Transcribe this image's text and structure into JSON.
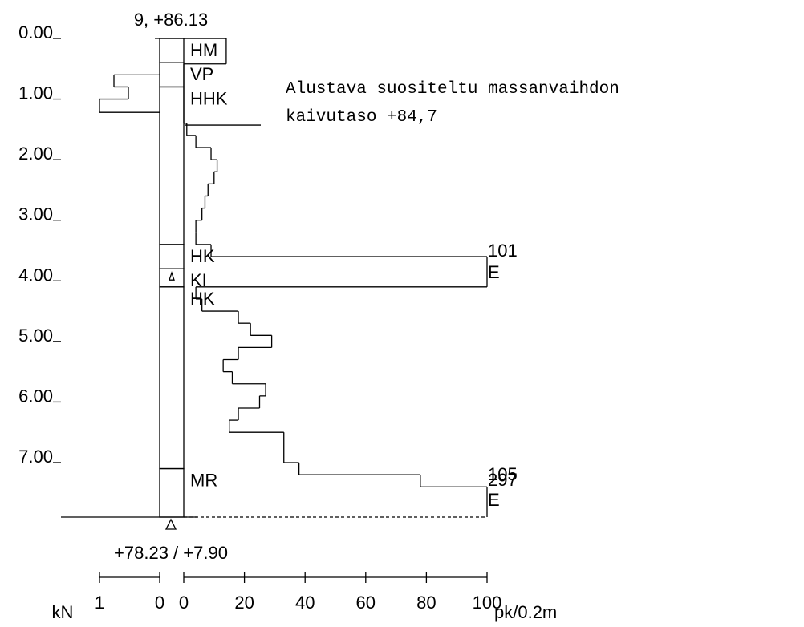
{
  "title": "9, +86.13",
  "bottom_label": "+78.23 / +7.90",
  "depth_lim": [
    0,
    7.9
  ],
  "depth_ticks": [
    {
      "value": 0,
      "label": "0.00"
    },
    {
      "value": 1,
      "label": "1.00"
    },
    {
      "value": 2,
      "label": "2.00"
    },
    {
      "value": 3,
      "label": "3.00"
    },
    {
      "value": 4,
      "label": "4.00"
    },
    {
      "value": 5,
      "label": "5.00"
    },
    {
      "value": 6,
      "label": "6.00"
    },
    {
      "value": 7,
      "label": "7.00"
    }
  ],
  "pk_axis": {
    "label": "pk/0.2m",
    "lim": [
      0,
      100
    ],
    "ticks": [
      0,
      20,
      40,
      60,
      80,
      100
    ]
  },
  "kn_axis": {
    "label": "kN",
    "lim": [
      0,
      1
    ],
    "ticks": [
      1,
      0
    ]
  },
  "layers": [
    {
      "name": "HM",
      "top": 0,
      "bottom": 0.4,
      "symbol": "none"
    },
    {
      "name": "VP",
      "top": 0.4,
      "bottom": 0.8,
      "symbol": "circles"
    },
    {
      "name": "HHK",
      "top": 0.8,
      "bottom": 3.4,
      "symbol": "dots"
    },
    {
      "name": "HK",
      "top": 3.4,
      "bottom": 3.8,
      "symbol": "dots"
    },
    {
      "name": "KI",
      "top": 3.8,
      "bottom": 4.1,
      "symbol": "stone"
    },
    {
      "name": "HK",
      "top": 4.1,
      "bottom": 7.1,
      "symbol": "dots"
    },
    {
      "name": "MR",
      "top": 7.1,
      "bottom": 7.9,
      "symbol": "zigzag"
    }
  ],
  "pk_profile": {
    "edges": [
      0,
      0.42,
      1.4,
      1.6,
      1.8,
      2.0,
      2.2,
      2.4,
      2.6,
      2.8,
      3.0,
      3.2,
      3.4,
      3.6,
      4.1,
      4.3,
      4.5,
      4.7,
      4.9,
      5.1,
      5.3,
      5.5,
      5.7,
      5.9,
      6.1,
      6.3,
      6.5,
      7.0,
      7.2,
      7.4,
      7.9
    ],
    "values": [
      14,
      0,
      1,
      4,
      9,
      11,
      10,
      8,
      7,
      6,
      4,
      4,
      9,
      100,
      4,
      6,
      18,
      22,
      29,
      18,
      13,
      16,
      27,
      25,
      18,
      15,
      33,
      38,
      78,
      100
    ]
  },
  "kn_profile": {
    "edges": [
      0.6,
      0.8,
      1.0,
      1.22
    ],
    "values": [
      0.76,
      0.52,
      1.0
    ]
  },
  "end_labels": [
    "101",
    "E",
    "105",
    "297",
    "E"
  ],
  "dig_level": {
    "lines": [
      "Alustava suositeltu massanvaihdon",
      "kaivutaso +84,7"
    ],
    "depth": 1.43
  }
}
